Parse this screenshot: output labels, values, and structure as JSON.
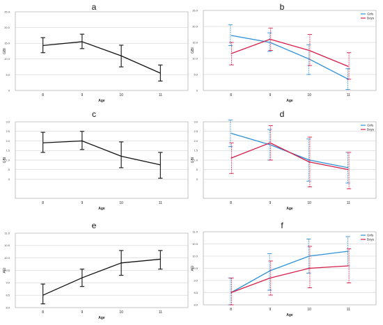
{
  "colors": {
    "single": "#111111",
    "girls": "#2b8fd6",
    "boys": "#d81b48",
    "grid": "#c8c8c8",
    "frame": "#9a9a9a"
  },
  "chart_data": [
    {
      "letter": "a",
      "type": "line",
      "categories": [
        "8",
        "9",
        "10",
        "11"
      ],
      "xlabel": "Age",
      "ylabel": "GBI",
      "ylim": [
        0,
        25
      ],
      "yticks": [
        "0",
        "5.0",
        "10.0",
        "15.0",
        "20.0",
        "25.0"
      ],
      "series": [
        {
          "values": [
            14.3,
            15.5,
            11.0,
            5.5
          ],
          "err_low": [
            12.0,
            13.3,
            7.5,
            3.0
          ],
          "err_high": [
            16.8,
            17.9,
            14.4,
            8.1
          ]
        }
      ]
    },
    {
      "letter": "b",
      "type": "line",
      "categories": [
        "8",
        "9",
        "10",
        "11"
      ],
      "xlabel": "Age",
      "ylabel": "GBI",
      "ylim": [
        0,
        25
      ],
      "yticks": [
        "0",
        "5.0",
        "10.0",
        "15.0",
        "20.0",
        "25.0"
      ],
      "legend": "top-right",
      "series": [
        {
          "name": "Girls",
          "color_key": "girls",
          "values": [
            17.2,
            15.0,
            9.8,
            3.5
          ],
          "err_low": [
            14.0,
            12.2,
            5.0,
            0.3
          ],
          "err_high": [
            20.5,
            18.0,
            14.3,
            6.8
          ]
        },
        {
          "name": "Boys",
          "color_key": "boys",
          "values": [
            11.5,
            16.0,
            12.5,
            7.5
          ],
          "err_low": [
            8.0,
            12.5,
            7.8,
            3.5
          ],
          "err_high": [
            15.0,
            19.5,
            17.5,
            11.8
          ]
        }
      ]
    },
    {
      "letter": "c",
      "type": "line",
      "categories": [
        "8",
        "9",
        "10",
        "11"
      ],
      "xlabel": "Age",
      "ylabel": "GBI",
      "ylim": [
        -1,
        3
      ],
      "yticks": [
        "0",
        ".5",
        "1.0",
        "1.5",
        "2.0",
        "2.5",
        "3.0"
      ],
      "series": [
        {
          "values": [
            1.9,
            2.0,
            1.2,
            0.75
          ],
          "err_low": [
            1.4,
            1.55,
            0.6,
            0.05
          ],
          "err_high": [
            2.45,
            2.5,
            1.95,
            1.4
          ]
        }
      ]
    },
    {
      "letter": "d",
      "type": "line",
      "categories": [
        "8",
        "9",
        "10",
        "11"
      ],
      "xlabel": "Age",
      "ylabel": "GBI",
      "ylim": [
        -1,
        3
      ],
      "yticks": [
        "0",
        ".5",
        "1.0",
        "1.5",
        "2.0",
        "2.5",
        "3.0"
      ],
      "legend": "top-right",
      "series": [
        {
          "name": "Girls",
          "color_key": "girls",
          "values": [
            2.4,
            1.8,
            1.0,
            0.6
          ],
          "err_low": [
            1.7,
            1.0,
            -0.1,
            -0.2
          ],
          "err_high": [
            3.1,
            2.6,
            2.1,
            1.4
          ]
        },
        {
          "name": "Boys",
          "color_key": "boys",
          "values": [
            1.1,
            1.9,
            0.9,
            0.5
          ],
          "err_low": [
            0.3,
            1.0,
            -0.4,
            -0.5
          ],
          "err_high": [
            1.9,
            2.8,
            2.2,
            1.4
          ]
        }
      ]
    },
    {
      "letter": "e",
      "type": "line",
      "categories": [
        "8",
        "9",
        "10",
        "11"
      ],
      "xlabel": "Age",
      "ylabel": "AEI",
      "ylim": [
        8,
        11
      ],
      "yticks": [
        "8.0",
        "8.5",
        "9.0",
        "9.5",
        "10.0",
        "10.5",
        "11.0"
      ],
      "series": [
        {
          "values": [
            8.5,
            9.2,
            9.8,
            9.95
          ],
          "err_low": [
            8.15,
            8.85,
            9.3,
            9.55
          ],
          "err_high": [
            8.95,
            9.55,
            10.3,
            10.3
          ]
        }
      ]
    },
    {
      "letter": "f",
      "type": "line",
      "categories": [
        "8",
        "9",
        "10",
        "11"
      ],
      "xlabel": "Age",
      "ylabel": "AEI",
      "ylim": [
        8,
        11
      ],
      "yticks": [
        "8.0",
        "8.5",
        "9.0",
        "9.5",
        "10.0",
        "10.5",
        "11.0"
      ],
      "legend": "top-right",
      "series": [
        {
          "name": "Girls",
          "color_key": "girls",
          "values": [
            8.5,
            9.4,
            10.0,
            10.2
          ],
          "err_low": [
            8.0,
            8.6,
            9.3,
            9.6
          ],
          "err_high": [
            9.1,
            10.1,
            10.7,
            10.8
          ]
        },
        {
          "name": "Boys",
          "color_key": "boys",
          "values": [
            8.5,
            9.1,
            9.5,
            9.6
          ],
          "err_low": [
            8.0,
            8.4,
            8.7,
            8.9
          ],
          "err_high": [
            9.1,
            9.8,
            10.4,
            10.3
          ]
        }
      ]
    }
  ]
}
